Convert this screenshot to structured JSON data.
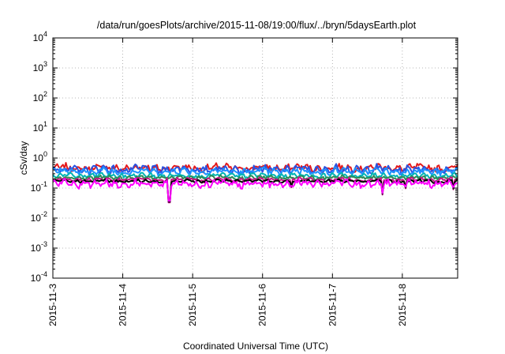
{
  "chart_data": {
    "type": "line",
    "title": "/data/run/goesPlots/archive/2015-11-08/19:00/flux/../bryn/5daysEarth.plot",
    "xlabel": "Coordinated Universal Time (UTC)",
    "ylabel": "cSv/day",
    "yscale": "log",
    "ylim": [
      0.0001,
      10000
    ],
    "xlim": [
      "2015-11-03T00:00",
      "2015-11-08T19:00"
    ],
    "grid": true,
    "y_ticks": [
      {
        "value": 0.0001,
        "base": "10",
        "exp": "-4"
      },
      {
        "value": 0.001,
        "base": "10",
        "exp": "-3"
      },
      {
        "value": 0.01,
        "base": "10",
        "exp": "-2"
      },
      {
        "value": 0.1,
        "base": "10",
        "exp": "-1"
      },
      {
        "value": 1,
        "base": "10",
        "exp": "0"
      },
      {
        "value": 10,
        "base": "10",
        "exp": "1"
      },
      {
        "value": 100,
        "base": "10",
        "exp": "2"
      },
      {
        "value": 1000,
        "base": "10",
        "exp": "3"
      },
      {
        "value": 10000,
        "base": "10",
        "exp": "4"
      }
    ],
    "x_ticks": [
      "2015-11-3",
      "2015-11-4",
      "2015-11-5",
      "2015-11-6",
      "2015-11-7",
      "2015-11-8"
    ],
    "series": [
      {
        "color": "#e41a1c",
        "level": 0.47,
        "noise": 0.18
      },
      {
        "color": "#2a52e0",
        "level": 0.42,
        "noise": 0.2
      },
      {
        "color": "#1e90ff",
        "level": 0.36,
        "noise": 0.17
      },
      {
        "color": "#00b4b4",
        "level": 0.26,
        "noise": 0.12
      },
      {
        "color": "#2e8b57",
        "level": 0.22,
        "noise": 0.1
      },
      {
        "color": "#c71585",
        "level": 0.19,
        "noise": 0.1
      },
      {
        "color": "#000000",
        "level": 0.17,
        "noise": 0.08
      },
      {
        "color": "#ff00ff",
        "level": 0.14,
        "noise": 0.2
      }
    ],
    "dips": [
      {
        "x": "2015-11-04T16:00",
        "value": 0.022
      },
      {
        "x": "2015-11-06T10:00",
        "value": 0.07
      },
      {
        "x": "2015-11-07T17:00",
        "value": 0.04
      },
      {
        "x": "2015-11-08T01:00",
        "value": 0.065
      },
      {
        "x": "2015-11-08T17:30",
        "value": 0.06
      }
    ]
  }
}
